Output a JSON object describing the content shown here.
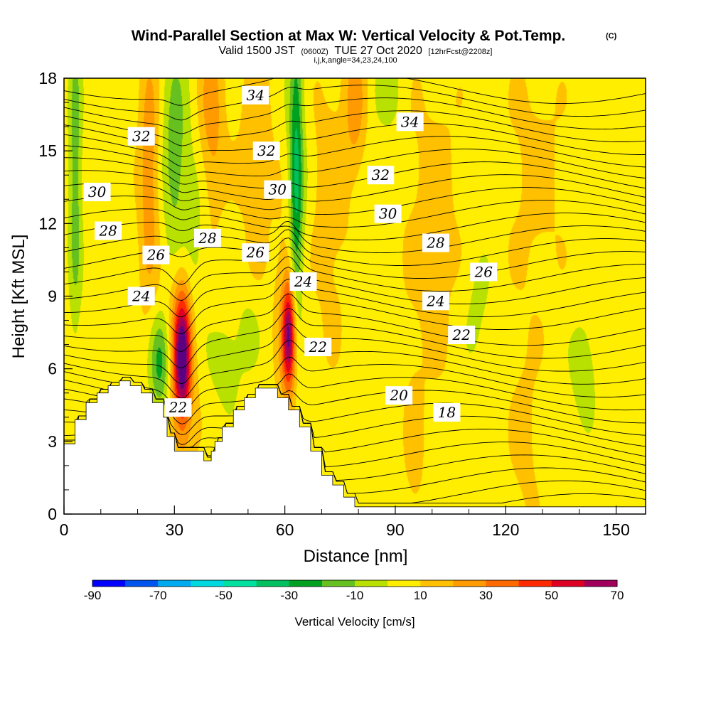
{
  "header": {
    "title": "Wind-Parallel Section at Max W: Vertical Velocity & Pot.Temp.",
    "copyright": "(C)",
    "subtitle_valid": "Valid 1500 JST",
    "subtitle_utc": "(0600Z)",
    "subtitle_date": "TUE 27 Oct 2020",
    "subtitle_fcst": "[12hrFcst@2208z]",
    "indices": "i,j,k,angle=34,23,24,100"
  },
  "chart_data": {
    "type": "heatmap",
    "xlabel": "Distance [nm]",
    "ylabel": "Height [Kft MSL]",
    "xlim": [
      0,
      158
    ],
    "ylim": [
      0,
      18
    ],
    "x_ticks": [
      0,
      30,
      60,
      90,
      120,
      150
    ],
    "y_ticks": [
      0,
      3,
      6,
      9,
      12,
      15,
      18
    ],
    "colorbar": {
      "label": "Vertical Velocity [cm/s]",
      "levels": [
        -90,
        -80,
        -70,
        -60,
        -50,
        -40,
        -30,
        -20,
        -10,
        0,
        10,
        20,
        30,
        40,
        50,
        60,
        70
      ],
      "tick_labels": [
        "-90",
        "-70",
        "-50",
        "-30",
        "-10",
        "10",
        "30",
        "50",
        "70"
      ],
      "colors": [
        "#0000ff",
        "#0055ee",
        "#00aaf0",
        "#00d8e0",
        "#00e0a0",
        "#00c060",
        "#00a020",
        "#66c020",
        "#b8e000",
        "#ffee00",
        "#ffc000",
        "#ff9a00",
        "#ff6a00",
        "#ff2a00",
        "#dd0022",
        "#a0005a",
        "#5a0080"
      ]
    },
    "background_value": 5,
    "updrafts": [
      {
        "x": 32,
        "y": 6.5,
        "sx": 1.6,
        "sy": 1.8,
        "w": 62
      },
      {
        "x": 61,
        "y": 7.4,
        "sx": 1.2,
        "sy": 1.5,
        "w": 52
      },
      {
        "x": 32,
        "y": 7.0,
        "sx": 3.0,
        "sy": 3.6,
        "w": 22
      },
      {
        "x": 61,
        "y": 7.8,
        "sx": 2.4,
        "sy": 3.2,
        "w": 20
      },
      {
        "x": 23,
        "y": 14.0,
        "sx": 2.0,
        "sy": 4.0,
        "w": 22
      },
      {
        "x": 40,
        "y": 16.5,
        "sx": 2.5,
        "sy": 3.0,
        "w": 20
      },
      {
        "x": 79,
        "y": 17.0,
        "sx": 2.0,
        "sy": 2.0,
        "w": 20
      },
      {
        "x": 52,
        "y": 15.0,
        "sx": 4.0,
        "sy": 3.5,
        "w": 10
      },
      {
        "x": 72,
        "y": 13.0,
        "sx": 4.0,
        "sy": 4.5,
        "w": 10
      },
      {
        "x": 100,
        "y": 12.0,
        "sx": 6.0,
        "sy": 5.0,
        "w": 9
      },
      {
        "x": 128,
        "y": 14.0,
        "sx": 6.0,
        "sy": 4.0,
        "w": 8
      },
      {
        "x": 95,
        "y": 2.5,
        "sx": 2.0,
        "sy": 2.5,
        "w": 8
      },
      {
        "x": 125,
        "y": 3.0,
        "sx": 3.0,
        "sy": 3.0,
        "w": 8
      }
    ],
    "downdrafts": [
      {
        "x": 63,
        "y": 13.5,
        "sx": 1.2,
        "sy": 4.5,
        "w": -30
      },
      {
        "x": 63,
        "y": 13.5,
        "sx": 2.2,
        "sy": 5.0,
        "w": -12
      },
      {
        "x": 30,
        "y": 14.5,
        "sx": 2.4,
        "sy": 3.5,
        "w": -22
      },
      {
        "x": 35,
        "y": 11.0,
        "sx": 2.6,
        "sy": 3.0,
        "w": -14
      },
      {
        "x": 26,
        "y": 6.2,
        "sx": 2.0,
        "sy": 1.4,
        "w": -30
      },
      {
        "x": 3,
        "y": 14.0,
        "sx": 1.2,
        "sy": 4.5,
        "w": -22
      },
      {
        "x": 44,
        "y": 6.2,
        "sx": 3.0,
        "sy": 1.2,
        "w": -12
      },
      {
        "x": 50,
        "y": 7.5,
        "sx": 2.0,
        "sy": 1.0,
        "w": -10
      },
      {
        "x": 88,
        "y": 17.5,
        "sx": 3.0,
        "sy": 1.2,
        "w": -10
      },
      {
        "x": 141,
        "y": 6.0,
        "sx": 2.5,
        "sy": 1.5,
        "w": -12
      },
      {
        "x": 112,
        "y": 8.5,
        "sx": 3.0,
        "sy": 2.0,
        "w": -8
      }
    ],
    "terrain": {
      "x": [
        0,
        3,
        3,
        6,
        6,
        9,
        9,
        12,
        12,
        15,
        15,
        18,
        18,
        21,
        21,
        24,
        24,
        27,
        27,
        28,
        28,
        30,
        30,
        38,
        38,
        40,
        40,
        41,
        41,
        43,
        43,
        46,
        46,
        49,
        49,
        52,
        52,
        58,
        58,
        61,
        61,
        64,
        64,
        67,
        67,
        70,
        70,
        73,
        73,
        76,
        76,
        79,
        79,
        82,
        82,
        158
      ],
      "y": [
        2.9,
        2.9,
        3.9,
        3.9,
        4.6,
        4.6,
        5.0,
        5.0,
        5.3,
        5.3,
        5.5,
        5.5,
        5.3,
        5.3,
        5.0,
        5.0,
        4.6,
        4.6,
        4.0,
        4.0,
        3.2,
        3.2,
        2.6,
        2.6,
        2.2,
        2.2,
        2.6,
        2.6,
        3.0,
        3.0,
        3.6,
        3.6,
        4.3,
        4.3,
        4.8,
        4.8,
        5.2,
        5.2,
        4.8,
        4.8,
        4.3,
        4.3,
        3.6,
        3.6,
        2.6,
        2.6,
        1.6,
        1.6,
        1.2,
        1.2,
        0.7,
        0.7,
        0.3,
        0.3,
        0.3,
        0.3
      ]
    },
    "theta_labels": [
      {
        "text": "34",
        "x": 52,
        "y": 17.3
      },
      {
        "text": "34",
        "x": 94,
        "y": 16.2
      },
      {
        "text": "32",
        "x": 21,
        "y": 15.6
      },
      {
        "text": "32",
        "x": 55,
        "y": 15.0
      },
      {
        "text": "32",
        "x": 86,
        "y": 14.0
      },
      {
        "text": "30",
        "x": 9,
        "y": 13.3
      },
      {
        "text": "30",
        "x": 58,
        "y": 13.4
      },
      {
        "text": "30",
        "x": 88,
        "y": 12.4
      },
      {
        "text": "28",
        "x": 12,
        "y": 11.7
      },
      {
        "text": "28",
        "x": 39,
        "y": 11.4
      },
      {
        "text": "28",
        "x": 101,
        "y": 11.2
      },
      {
        "text": "26",
        "x": 25,
        "y": 10.7
      },
      {
        "text": "26",
        "x": 52,
        "y": 10.8
      },
      {
        "text": "26",
        "x": 114,
        "y": 10.0
      },
      {
        "text": "24",
        "x": 21,
        "y": 9.0
      },
      {
        "text": "24",
        "x": 65,
        "y": 9.6
      },
      {
        "text": "24",
        "x": 101,
        "y": 8.8
      },
      {
        "text": "22",
        "x": 69,
        "y": 6.9
      },
      {
        "text": "22",
        "x": 108,
        "y": 7.4
      },
      {
        "text": "22",
        "x": 31,
        "y": 4.4
      },
      {
        "text": "20",
        "x": 91,
        "y": 4.9
      },
      {
        "text": "18",
        "x": 104,
        "y": 4.2
      }
    ]
  }
}
